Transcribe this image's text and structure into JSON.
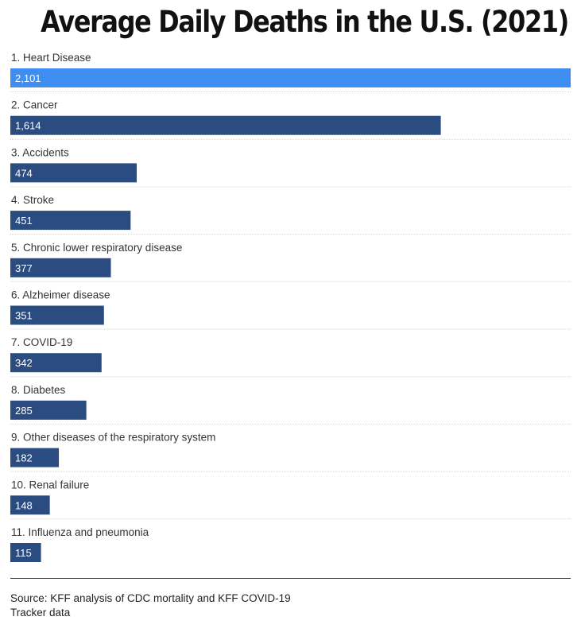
{
  "chart_data": {
    "type": "bar",
    "orientation": "horizontal",
    "title": "Average Daily Deaths in the U.S. (2021)",
    "categories": [
      "1. Heart Disease",
      "2. Cancer",
      "3. Accidents",
      "4. Stroke",
      "5. Chronic lower respiratory disease",
      "6. Alzheimer disease",
      "7. COVID-19",
      "8. Diabetes",
      "9. Other diseases of the respiratory system",
      "10. Renal failure",
      "11. Influenza and pneumonia"
    ],
    "values": [
      2101,
      1614,
      474,
      451,
      377,
      351,
      342,
      285,
      182,
      148,
      115
    ],
    "value_labels": [
      "2,101",
      "1,614",
      "474",
      "451",
      "377",
      "351",
      "342",
      "285",
      "182",
      "148",
      "115"
    ],
    "xlim": [
      0,
      2101
    ],
    "grid": false,
    "colors": {
      "highlight": "#3d8ef0",
      "default": "#2b4c80",
      "separator": "#d6d6d6",
      "rule": "#1f3a62"
    }
  },
  "source": "Source: KFF analysis of CDC mortality and KFF COVID-19 Tracker data"
}
